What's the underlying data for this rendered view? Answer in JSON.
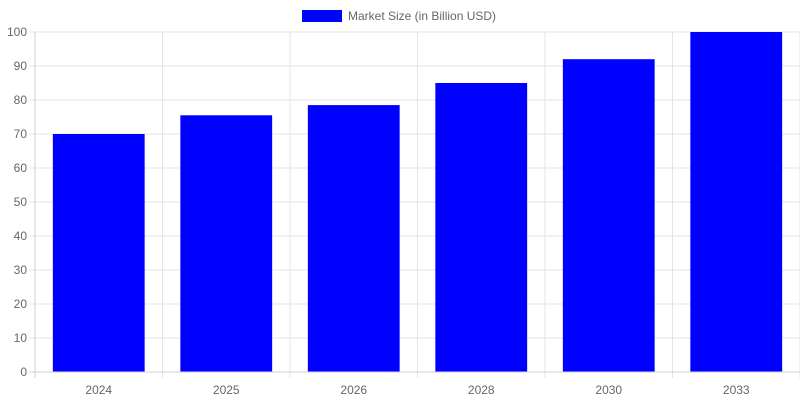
{
  "chart_data": {
    "type": "bar",
    "categories": [
      "2024",
      "2025",
      "2026",
      "2028",
      "2030",
      "2033"
    ],
    "series": [
      {
        "name": "Market Size (in Billion USD)",
        "values": [
          70,
          75.5,
          78.5,
          85,
          92,
          100
        ],
        "color": "#0000ff"
      }
    ],
    "title": "",
    "xlabel": "",
    "ylabel": "",
    "ylim": [
      0,
      100
    ],
    "yticks": [
      0,
      10,
      20,
      30,
      40,
      50,
      60,
      70,
      80,
      90,
      100
    ],
    "grid": true,
    "legend_position": "top-center",
    "colors": {
      "grid": "#e5e5e5",
      "axis": "#d0d0d0",
      "tick_text": "#666666"
    }
  }
}
